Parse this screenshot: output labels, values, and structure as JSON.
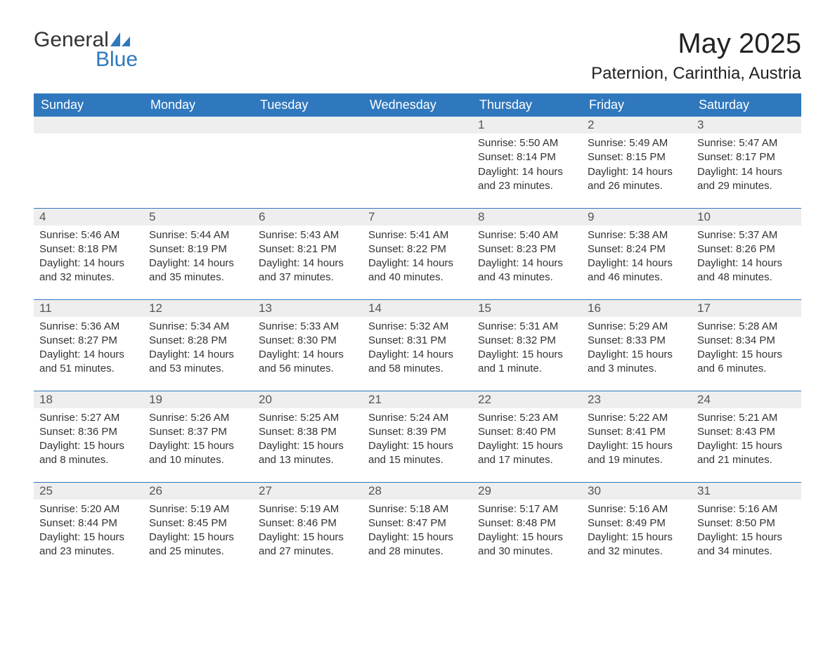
{
  "brand": {
    "word1": "General",
    "word2": "Blue"
  },
  "title": "May 2025",
  "location": "Paternion, Carinthia, Austria",
  "colors": {
    "accent": "#2f78bd",
    "header_bg": "#2f78bd",
    "header_text": "#ffffff",
    "daynum_bg": "#eeeeee",
    "text": "#333333",
    "background": "#ffffff"
  },
  "calendar": {
    "type": "table",
    "columns": [
      "Sunday",
      "Monday",
      "Tuesday",
      "Wednesday",
      "Thursday",
      "Friday",
      "Saturday"
    ],
    "first_weekday_index": 4,
    "days": [
      {
        "n": 1,
        "sunrise": "5:50 AM",
        "sunset": "8:14 PM",
        "daylight": "14 hours and 23 minutes."
      },
      {
        "n": 2,
        "sunrise": "5:49 AM",
        "sunset": "8:15 PM",
        "daylight": "14 hours and 26 minutes."
      },
      {
        "n": 3,
        "sunrise": "5:47 AM",
        "sunset": "8:17 PM",
        "daylight": "14 hours and 29 minutes."
      },
      {
        "n": 4,
        "sunrise": "5:46 AM",
        "sunset": "8:18 PM",
        "daylight": "14 hours and 32 minutes."
      },
      {
        "n": 5,
        "sunrise": "5:44 AM",
        "sunset": "8:19 PM",
        "daylight": "14 hours and 35 minutes."
      },
      {
        "n": 6,
        "sunrise": "5:43 AM",
        "sunset": "8:21 PM",
        "daylight": "14 hours and 37 minutes."
      },
      {
        "n": 7,
        "sunrise": "5:41 AM",
        "sunset": "8:22 PM",
        "daylight": "14 hours and 40 minutes."
      },
      {
        "n": 8,
        "sunrise": "5:40 AM",
        "sunset": "8:23 PM",
        "daylight": "14 hours and 43 minutes."
      },
      {
        "n": 9,
        "sunrise": "5:38 AM",
        "sunset": "8:24 PM",
        "daylight": "14 hours and 46 minutes."
      },
      {
        "n": 10,
        "sunrise": "5:37 AM",
        "sunset": "8:26 PM",
        "daylight": "14 hours and 48 minutes."
      },
      {
        "n": 11,
        "sunrise": "5:36 AM",
        "sunset": "8:27 PM",
        "daylight": "14 hours and 51 minutes."
      },
      {
        "n": 12,
        "sunrise": "5:34 AM",
        "sunset": "8:28 PM",
        "daylight": "14 hours and 53 minutes."
      },
      {
        "n": 13,
        "sunrise": "5:33 AM",
        "sunset": "8:30 PM",
        "daylight": "14 hours and 56 minutes."
      },
      {
        "n": 14,
        "sunrise": "5:32 AM",
        "sunset": "8:31 PM",
        "daylight": "14 hours and 58 minutes."
      },
      {
        "n": 15,
        "sunrise": "5:31 AM",
        "sunset": "8:32 PM",
        "daylight": "15 hours and 1 minute."
      },
      {
        "n": 16,
        "sunrise": "5:29 AM",
        "sunset": "8:33 PM",
        "daylight": "15 hours and 3 minutes."
      },
      {
        "n": 17,
        "sunrise": "5:28 AM",
        "sunset": "8:34 PM",
        "daylight": "15 hours and 6 minutes."
      },
      {
        "n": 18,
        "sunrise": "5:27 AM",
        "sunset": "8:36 PM",
        "daylight": "15 hours and 8 minutes."
      },
      {
        "n": 19,
        "sunrise": "5:26 AM",
        "sunset": "8:37 PM",
        "daylight": "15 hours and 10 minutes."
      },
      {
        "n": 20,
        "sunrise": "5:25 AM",
        "sunset": "8:38 PM",
        "daylight": "15 hours and 13 minutes."
      },
      {
        "n": 21,
        "sunrise": "5:24 AM",
        "sunset": "8:39 PM",
        "daylight": "15 hours and 15 minutes."
      },
      {
        "n": 22,
        "sunrise": "5:23 AM",
        "sunset": "8:40 PM",
        "daylight": "15 hours and 17 minutes."
      },
      {
        "n": 23,
        "sunrise": "5:22 AM",
        "sunset": "8:41 PM",
        "daylight": "15 hours and 19 minutes."
      },
      {
        "n": 24,
        "sunrise": "5:21 AM",
        "sunset": "8:43 PM",
        "daylight": "15 hours and 21 minutes."
      },
      {
        "n": 25,
        "sunrise": "5:20 AM",
        "sunset": "8:44 PM",
        "daylight": "15 hours and 23 minutes."
      },
      {
        "n": 26,
        "sunrise": "5:19 AM",
        "sunset": "8:45 PM",
        "daylight": "15 hours and 25 minutes."
      },
      {
        "n": 27,
        "sunrise": "5:19 AM",
        "sunset": "8:46 PM",
        "daylight": "15 hours and 27 minutes."
      },
      {
        "n": 28,
        "sunrise": "5:18 AM",
        "sunset": "8:47 PM",
        "daylight": "15 hours and 28 minutes."
      },
      {
        "n": 29,
        "sunrise": "5:17 AM",
        "sunset": "8:48 PM",
        "daylight": "15 hours and 30 minutes."
      },
      {
        "n": 30,
        "sunrise": "5:16 AM",
        "sunset": "8:49 PM",
        "daylight": "15 hours and 32 minutes."
      },
      {
        "n": 31,
        "sunrise": "5:16 AM",
        "sunset": "8:50 PM",
        "daylight": "15 hours and 34 minutes."
      }
    ],
    "labels": {
      "sunrise": "Sunrise:",
      "sunset": "Sunset:",
      "daylight": "Daylight:"
    }
  }
}
